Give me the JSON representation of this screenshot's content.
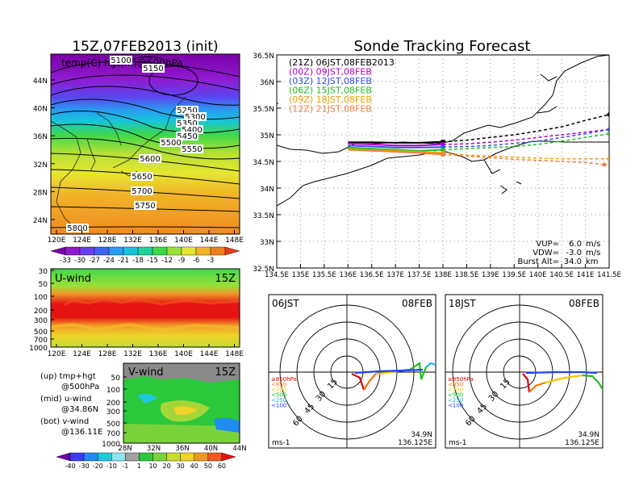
{
  "left_title": "15Z,07FEB2013 (init)",
  "right_title": "Sonde Tracking Forecast",
  "map500": {
    "label": "temp(C) hgt(m)@500hPa",
    "lat_ticks": [
      "44N",
      "40N",
      "36N",
      "32N",
      "28N",
      "24N"
    ],
    "lon_ticks": [
      "120E",
      "124E",
      "128E",
      "132E",
      "136E",
      "140E",
      "144E",
      "148E"
    ],
    "contour_labels": [
      "5100",
      "5150",
      "5250",
      "5300",
      "5350",
      "5400",
      "5450",
      "5500",
      "5550",
      "5600",
      "5650",
      "5700",
      "5750",
      "5800"
    ],
    "colorbar_labels": [
      "-33",
      "-30",
      "-27",
      "-24",
      "-21",
      "-18",
      "-15",
      "-12",
      "-9",
      "-6",
      "-3"
    ],
    "colorbar_colors": [
      "#7b00a8",
      "#8f1bd0",
      "#6a3cf0",
      "#3f63f5",
      "#2a9bf0",
      "#16c4dc",
      "#1ed29a",
      "#3fd84a",
      "#9ae038",
      "#e6e632",
      "#f0b428",
      "#f07e1e",
      "#e64018"
    ]
  },
  "uwind": {
    "label": "U-wind",
    "time": "15Z",
    "p_ticks": [
      "30",
      "50",
      "100",
      "200",
      "300",
      "500",
      "700",
      "1000"
    ],
    "lon_ticks": [
      "120E",
      "124E",
      "128E",
      "132E",
      "136E",
      "140E",
      "144E",
      "148E"
    ]
  },
  "vwind": {
    "label": "V-wind",
    "time": "15Z",
    "p_ticks": [
      "50",
      "100",
      "200",
      "300",
      "500",
      "700",
      "1000"
    ],
    "lat_ticks": [
      "28N",
      "32N",
      "36N",
      "40N",
      "44N"
    ],
    "colorbar_labels": [
      "-40",
      "-30",
      "-20",
      "-10",
      "-1",
      "1",
      "10",
      "20",
      "30",
      "40",
      "50",
      "60"
    ],
    "colorbar_colors": [
      "#6a00a8",
      "#3a3cf0",
      "#1e8cf0",
      "#20c8dc",
      "#8ce6f0",
      "#a0a0a0",
      "#2ac83a",
      "#7ad23a",
      "#c8dc32",
      "#f0d228",
      "#f09628",
      "#f05a1e",
      "#e61414"
    ]
  },
  "legend_notes": [
    {
      "a": "(up) tmp+hgt",
      "b": "@500hPa"
    },
    {
      "a": "(mid) u-wind",
      "b": "@34.86N"
    },
    {
      "a": "(bot) v-wind",
      "b": "@136.11E"
    }
  ],
  "track_map": {
    "lat_ticks": [
      "36.5N",
      "36N",
      "35.5N",
      "35N",
      "34.5N",
      "34N",
      "33.5N",
      "33N",
      "32.5N"
    ],
    "lon_ticks": [
      "134.5E",
      "135E",
      "135.5E",
      "136E",
      "136.5E",
      "137E",
      "137.5E",
      "138E",
      "138.5E",
      "139E",
      "139.5E",
      "140E",
      "140.5E",
      "141E",
      "141.5E"
    ],
    "legend": [
      {
        "text": "(21Z)  06JST,08FEB2013",
        "color": "#000000"
      },
      {
        "text": "(00Z)  09JST,08FEB",
        "color": "#b000c8"
      },
      {
        "text": "(03Z)  12JST,08FEB",
        "color": "#3050f0"
      },
      {
        "text": "(06Z)  15JST,08FEB",
        "color": "#20c020"
      },
      {
        "text": "(09Z)  18JST,08FEB",
        "color": "#f0a000"
      },
      {
        "text": "(12Z)  21JST,08FEB",
        "color": "#f08040"
      }
    ],
    "params": [
      {
        "label": "VUP=",
        "value": "6.0",
        "unit": "m/s"
      },
      {
        "label": "VDW=",
        "value": "-3.0",
        "unit": "m/s"
      },
      {
        "label": "Burst Alt=",
        "value": "34.0",
        "unit": "km"
      }
    ]
  },
  "hodographs": [
    {
      "time": "06JST",
      "date": "08FEB",
      "rings": [
        "15",
        "30",
        "45",
        "60"
      ],
      "unit": "ms-1",
      "lat": "34.9N",
      "lon": "136.125E",
      "levels": [
        {
          "text": "≥850hPa",
          "color": "#e00000"
        },
        {
          "text": "<850",
          "color": "#f07800"
        },
        {
          "text": "<700",
          "color": "#f0c800"
        },
        {
          "text": "<500",
          "color": "#20c020"
        },
        {
          "text": "<250",
          "color": "#20b0e0"
        },
        {
          "text": "<100",
          "color": "#2040f0"
        }
      ]
    },
    {
      "time": "18JST",
      "date": "08FEB",
      "rings": [
        "15",
        "30",
        "45",
        "60"
      ],
      "unit": "ms-1",
      "lat": "34.9N",
      "lon": "136.125E",
      "levels": [
        {
          "text": "≥850hPa",
          "color": "#e00000"
        },
        {
          "text": "<850",
          "color": "#f07800"
        },
        {
          "text": "<700",
          "color": "#f0c800"
        },
        {
          "text": "<500",
          "color": "#20c020"
        },
        {
          "text": "<250",
          "color": "#20b0e0"
        },
        {
          "text": "<100",
          "color": "#2040f0"
        }
      ]
    }
  ],
  "chart_data": [
    {
      "type": "heatmap",
      "title": "temp(C) hgt(m)@500hPa",
      "xlim": [
        120,
        150
      ],
      "ylim": [
        22,
        48
      ],
      "colorbar": [
        -33,
        -30,
        -27,
        -24,
        -21,
        -18,
        -15,
        -12,
        -9,
        -6,
        -3
      ]
    },
    {
      "type": "heatmap",
      "title": "U-wind",
      "ylim": [
        1000,
        30
      ],
      "xlim": [
        120,
        150
      ]
    },
    {
      "type": "heatmap",
      "title": "V-wind",
      "ylim": [
        1000,
        30
      ],
      "xlim": [
        28,
        44
      ],
      "colorbar": [
        -40,
        -30,
        -20,
        -10,
        -1,
        1,
        10,
        20,
        30,
        40,
        50,
        60
      ]
    },
    {
      "type": "line",
      "title": "Sonde Tracking Forecast",
      "xlim": [
        134.5,
        141.5
      ],
      "ylim": [
        32.5,
        36.5
      ],
      "series": [
        {
          "name": "(21Z)  06JST,08FEB2013",
          "x": [
            136.0,
            136.5,
            137.0,
            137.5,
            138.0,
            138.5,
            139.0,
            139.5,
            140.0,
            140.5,
            141.0,
            141.5
          ],
          "y": [
            34.86,
            34.86,
            34.85,
            34.85,
            34.87,
            34.9,
            34.95,
            35.0,
            35.07,
            35.15,
            35.27,
            35.38
          ]
        },
        {
          "name": "(00Z)  09JST,08FEB",
          "x": [
            136.0,
            136.5,
            137.0,
            137.5,
            138.0,
            138.5,
            139.0,
            139.5,
            140.0,
            140.5,
            141.0,
            141.5
          ],
          "y": [
            34.84,
            34.82,
            34.8,
            34.8,
            34.82,
            34.83,
            34.86,
            34.9,
            34.95,
            35.0,
            35.05,
            35.1
          ]
        },
        {
          "name": "(03Z)  12JST,08FEB",
          "x": [
            136.0,
            136.5,
            137.0,
            137.5,
            138.0,
            138.5,
            139.0,
            139.5,
            140.0,
            140.5,
            141.0,
            141.5
          ],
          "y": [
            34.8,
            34.78,
            34.76,
            34.76,
            34.77,
            34.78,
            34.8,
            34.84,
            34.88,
            34.95,
            35.02,
            35.1
          ]
        },
        {
          "name": "(06Z)  15JST,08FEB",
          "x": [
            136.0,
            136.5,
            137.0,
            137.5,
            138.0,
            138.5,
            139.0,
            139.5,
            140.0,
            140.5,
            141.0,
            141.5
          ],
          "y": [
            34.76,
            34.74,
            34.72,
            34.7,
            34.72,
            34.74,
            34.76,
            34.78,
            34.82,
            34.88,
            34.95,
            35.02
          ]
        },
        {
          "name": "(09Z)  18JST,08FEB",
          "x": [
            136.0,
            136.5,
            137.0,
            137.5,
            138.0,
            138.5,
            139.0,
            139.5,
            140.0,
            140.5,
            141.0,
            141.5
          ],
          "y": [
            34.73,
            34.71,
            34.7,
            34.68,
            34.66,
            34.62,
            34.6,
            34.58,
            34.56,
            34.55,
            34.55,
            34.55
          ]
        },
        {
          "name": "(12Z)  21JST,08FEB",
          "x": [
            136.0,
            136.5,
            137.0,
            137.5,
            138.0,
            138.5,
            139.0,
            139.5,
            140.0,
            140.5,
            141.0,
            141.4
          ],
          "y": [
            34.72,
            34.7,
            34.68,
            34.66,
            34.63,
            34.6,
            34.57,
            34.54,
            34.52,
            34.5,
            34.48,
            34.44
          ]
        }
      ]
    }
  ]
}
